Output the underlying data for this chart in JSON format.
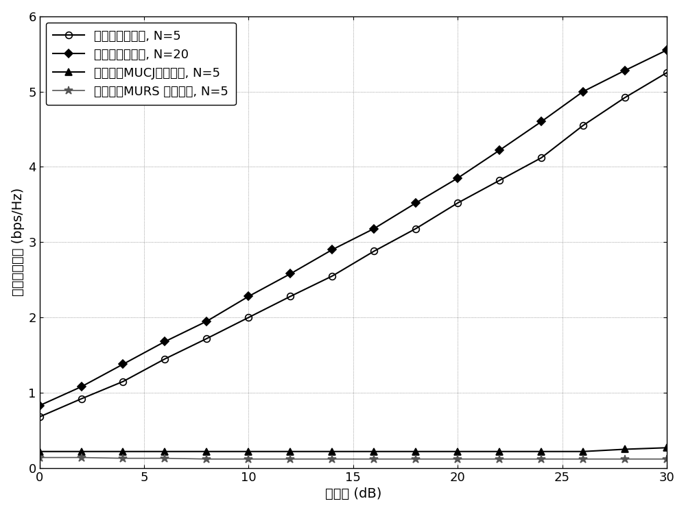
{
  "snr_x": [
    0,
    2,
    4,
    6,
    8,
    10,
    12,
    14,
    16,
    18,
    20,
    22,
    24,
    26,
    28,
    30
  ],
  "series": [
    {
      "label": "本发明仿真结果, N=5",
      "color": "#000000",
      "marker": "o",
      "markersize": 7,
      "linewidth": 1.5,
      "markerfilled": false,
      "values": [
        0.68,
        0.92,
        1.15,
        1.45,
        1.72,
        2.0,
        2.28,
        2.55,
        2.88,
        3.18,
        3.52,
        3.82,
        4.12,
        4.55,
        4.92,
        5.25
      ]
    },
    {
      "label": "本发明仿真结果, N=20",
      "color": "#000000",
      "marker": "D",
      "markersize": 6,
      "linewidth": 1.5,
      "markerfilled": true,
      "values": [
        0.83,
        1.08,
        1.38,
        1.68,
        1.95,
        2.28,
        2.58,
        2.9,
        3.18,
        3.52,
        3.85,
        4.22,
        4.6,
        5.0,
        5.28,
        5.55
      ]
    },
    {
      "label": "基准方案MUCJ仿真结果, N=5",
      "color": "#000000",
      "marker": "^",
      "markersize": 7,
      "linewidth": 1.5,
      "markerfilled": true,
      "values": [
        0.22,
        0.22,
        0.22,
        0.22,
        0.22,
        0.22,
        0.22,
        0.22,
        0.22,
        0.22,
        0.22,
        0.22,
        0.22,
        0.22,
        0.25,
        0.27
      ]
    },
    {
      "label": "基准方案MURS 仿真结果, N=5",
      "color": "#555555",
      "marker": "*",
      "markersize": 9,
      "linewidth": 1.2,
      "markerfilled": true,
      "values": [
        0.14,
        0.14,
        0.13,
        0.13,
        0.12,
        0.12,
        0.12,
        0.12,
        0.12,
        0.12,
        0.12,
        0.12,
        0.12,
        0.12,
        0.12,
        0.12
      ]
    }
  ],
  "xlim": [
    0,
    30
  ],
  "ylim": [
    0,
    6
  ],
  "xticks": [
    0,
    5,
    10,
    15,
    20,
    25,
    30
  ],
  "yticks": [
    0,
    1,
    2,
    3,
    4,
    5,
    6
  ],
  "xlabel": "信噪比 (dB)",
  "ylabel": "可达私密速率 (bps/Hz)",
  "grid": true,
  "legend_loc": "upper left",
  "font_size": 14,
  "tick_font_size": 13,
  "figsize": [
    10.0,
    7.47
  ],
  "dpi": 100
}
